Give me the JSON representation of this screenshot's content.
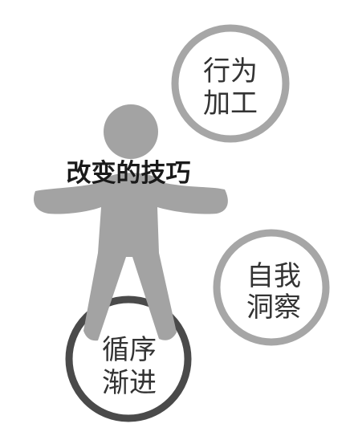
{
  "title": "改变的技巧",
  "colors": {
    "figure": "#a3a3a3",
    "ring_light": "#a6a6a6",
    "ring_dark": "#4a4a4a",
    "text": "#333333",
    "title_text": "#1a1a1a",
    "background": "#ffffff"
  },
  "techniques": [
    {
      "id": "behavior",
      "line1": "行为",
      "line2": "加工"
    },
    {
      "id": "insight",
      "line1": "自我",
      "line2": "洞察"
    },
    {
      "id": "gradual",
      "line1": "循序",
      "line2": "渐进"
    }
  ]
}
